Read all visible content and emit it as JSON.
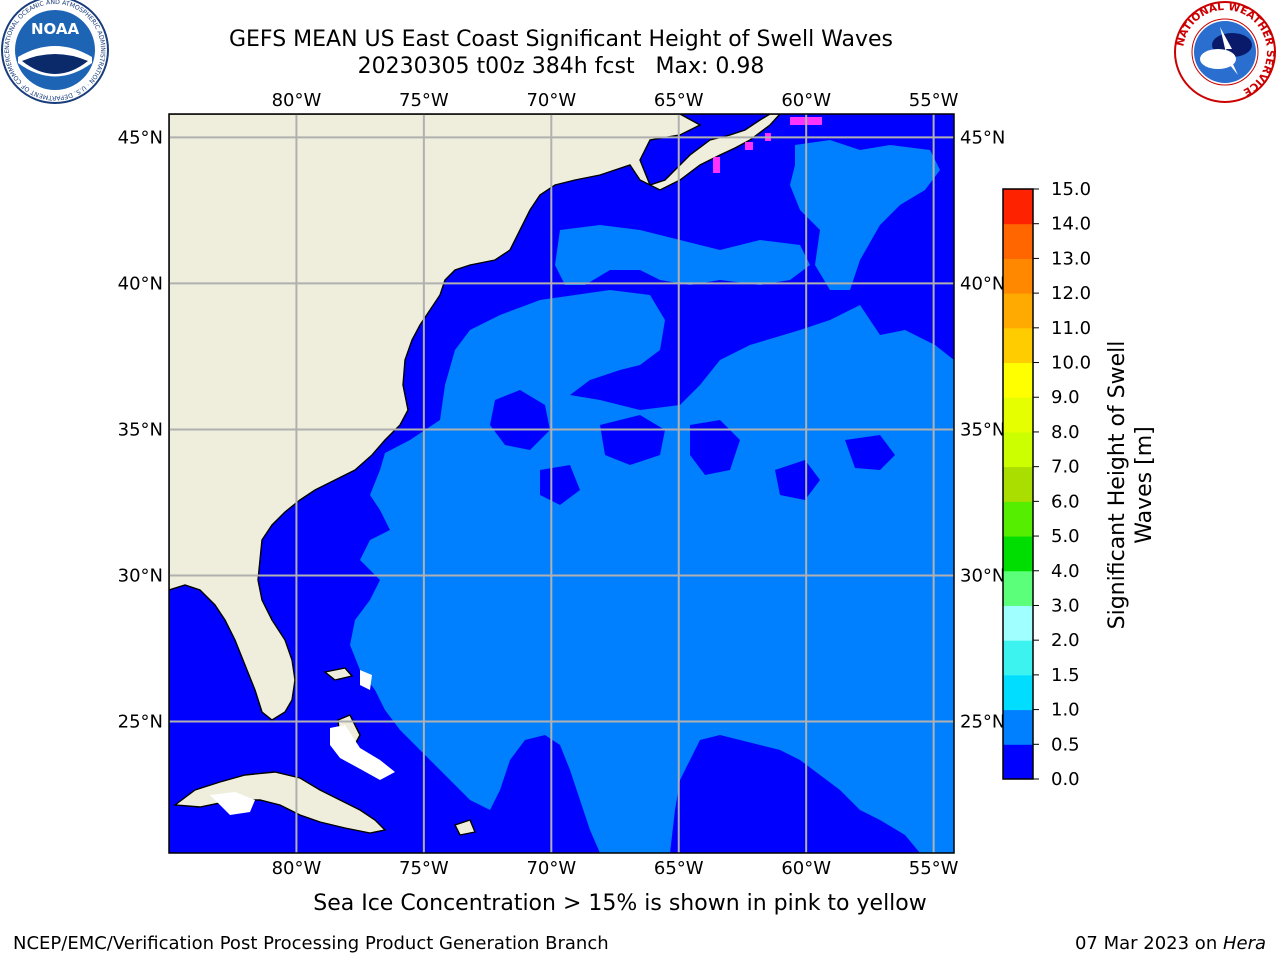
{
  "title": {
    "line1": "GEFS MEAN US East Coast Significant Height of Swell Waves",
    "line2": "20230305 t00z 384h fcst   Max: 0.98"
  },
  "map": {
    "lon_labels": [
      "80°W",
      "75°W",
      "70°W",
      "65°W",
      "60°W",
      "55°W"
    ],
    "lat_labels": [
      "45°N",
      "40°N",
      "35°N",
      "30°N",
      "25°N"
    ],
    "extent": {
      "lon_min": -85,
      "lon_max": -54.2,
      "lat_min": 20.5,
      "lat_max": 45.8
    },
    "colors": {
      "land": "#efeedc",
      "ocean_low": "#0000ff",
      "ocean_mid": "#0080ff",
      "grid": "#b0b0b0",
      "ice": "#ff33ff"
    }
  },
  "colorbar": {
    "label_line1": "Significant Height of Swell",
    "label_line2": "Waves [m]",
    "ticks": [
      "0.0",
      "0.5",
      "1.0",
      "1.5",
      "2.0",
      "3.0",
      "4.0",
      "5.0",
      "6.0",
      "7.0",
      "8.0",
      "9.0",
      "10.0",
      "11.0",
      "12.0",
      "13.0",
      "14.0",
      "15.0"
    ],
    "colors": [
      "#0000ff",
      "#0080ff",
      "#00ddff",
      "#3cf3f0",
      "#a0ffff",
      "#5cff7a",
      "#00dd00",
      "#55ee00",
      "#aadd00",
      "#ccff00",
      "#e6ff00",
      "#ffff00",
      "#ffcc00",
      "#ffaa00",
      "#ff8800",
      "#ff6600",
      "#ff2200"
    ]
  },
  "footer": {
    "note": "Sea Ice Concentration > 15% is shown in pink to yellow",
    "left": "NCEP/EMC/Verification Post Processing Product Generation Branch",
    "right_date": "07 Mar 2023 on ",
    "right_host": "Hera"
  },
  "logos": {
    "noaa_text": "NOAA",
    "noaa_ring": "NATIONAL OCEANIC AND ATMOSPHERIC ADMINISTRATION · U.S. DEPARTMENT OF COMMERCE",
    "nws_ring": "NATIONAL WEATHER SERVICE"
  }
}
